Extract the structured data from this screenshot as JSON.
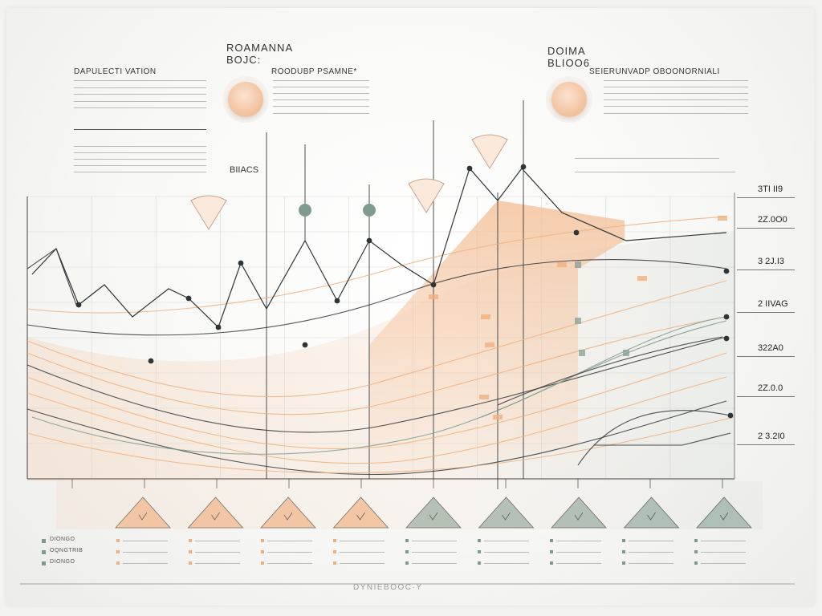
{
  "texts": {
    "title_left": "DAPULECTI VATION",
    "title_center": "ROAMANNA BOJC:",
    "subtitle_center": "ROODUBP PSAMNE*",
    "title_right": "DOIMA BLIOO6",
    "subtitle_right": "SEIERUNVADP OBOONORNIALI",
    "axis_title": "BIIACS",
    "footer": "DYNIEBOOC·Y"
  },
  "colors": {
    "peach": "#f0b07e",
    "peach_fill": "#f4c39d",
    "sage": "#7f9a8f",
    "ink": "#2f3437",
    "grid": "#d7d7d4"
  },
  "chart_data": {
    "type": "line",
    "y_tick_labels": [
      "3TI II9",
      "2Z.0O0",
      "3 2J.I3",
      "2 IIVAG",
      "322A0",
      "2Z.0.0",
      "2 3.2I0"
    ],
    "grid": true,
    "legend_rows": [
      {
        "label": "DIONGO"
      },
      {
        "label": "OQNGTRIB"
      },
      {
        "label": "DIONGO"
      }
    ],
    "marker_categories": 10,
    "pointer_triangles": [
      {
        "color": "peach"
      },
      {
        "color": "peach"
      },
      {
        "color": "peach"
      },
      {
        "color": "peach"
      },
      {
        "color": "sage"
      },
      {
        "color": "sage"
      },
      {
        "color": "sage"
      },
      {
        "color": "sage"
      },
      {
        "color": "sage"
      }
    ]
  }
}
